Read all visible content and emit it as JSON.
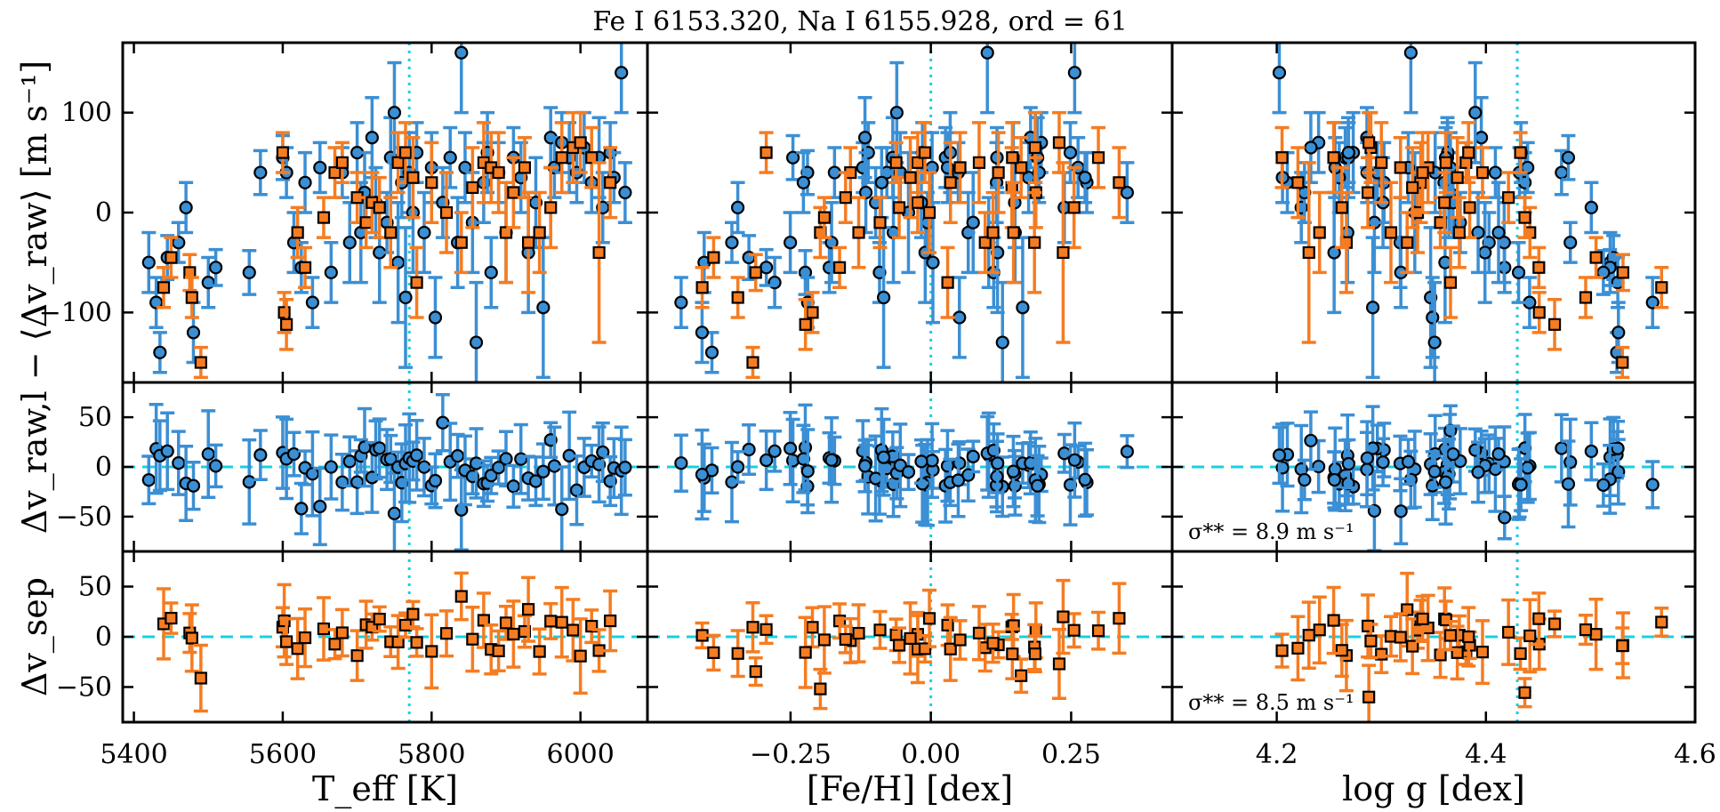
{
  "chart_data": {
    "type": "scatter",
    "title": "Fe I 6153.320, Na I 6155.928, ord = 61",
    "colors": {
      "blue": "#3b8fd4",
      "orange": "#f57c21",
      "cyan": "#17d0e3",
      "frame": "#000000"
    },
    "ylabels": {
      "top": "Δv_raw,l − ⟨Δv_raw⟩ [m s⁻¹]",
      "shared": "Δv_raw,l − ⟨Δv_raw⟩ [m s⁻¹]",
      "bottom": "Δv_sep"
    },
    "columns": [
      {
        "key": "teff",
        "xlabel": "T_eff [K]",
        "xlim": [
          5385,
          6090
        ],
        "ticks": [
          5400,
          5600,
          5800,
          6000
        ],
        "tick_labels": [
          "5400",
          "5600",
          "5800",
          "6000"
        ],
        "vline": 5770
      },
      {
        "key": "feh",
        "xlabel": "[Fe/H] [dex]",
        "xlim": [
          -0.505,
          0.43
        ],
        "ticks": [
          -0.25,
          0.0,
          0.25
        ],
        "tick_labels": [
          "−0.25",
          "0.00",
          "0.25"
        ],
        "vline": 0.0
      },
      {
        "key": "logg",
        "xlabel": "log g [dex]",
        "xlim": [
          4.1,
          4.6
        ],
        "ticks": [
          4.2,
          4.4,
          4.6
        ],
        "tick_labels": [
          "4.2",
          "4.4",
          "4.6"
        ],
        "vline": 4.43
      }
    ],
    "rows": [
      {
        "key": "raw",
        "ylim": [
          -170,
          170
        ],
        "ticks": [
          -100,
          0,
          100
        ],
        "tick_labels": [
          "−100",
          "0",
          "100"
        ],
        "hline": null
      },
      {
        "key": "resid",
        "ylim": [
          -85,
          85
        ],
        "ticks": [
          -50,
          0,
          50
        ],
        "tick_labels": [
          "−50",
          "0",
          "50"
        ],
        "hline": 0,
        "sigma": "σ** = 8.9 m s⁻¹"
      },
      {
        "key": "sep",
        "ylim": [
          -85,
          85
        ],
        "ticks": [
          -50,
          0,
          50
        ],
        "tick_labels": [
          "−50",
          "0",
          "50"
        ],
        "hline": 0,
        "sigma": "σ** = 8.5 m s⁻¹"
      }
    ],
    "series": [
      {
        "name": "Fe I 6153.320 (raw, circles)",
        "marker": "circle",
        "color": "blue",
        "row": "raw",
        "x_column": "teff",
        "points": [
          [
            5420,
            -50,
            30
          ],
          [
            5430,
            -90,
            25
          ],
          [
            5435,
            -140,
            20
          ],
          [
            5445,
            -45,
            22
          ],
          [
            5460,
            -30,
            20
          ],
          [
            5470,
            5,
            25
          ],
          [
            5480,
            -120,
            30
          ],
          [
            5500,
            -70,
            25
          ],
          [
            5510,
            -55,
            18
          ],
          [
            5555,
            -60,
            22
          ],
          [
            5570,
            40,
            22
          ],
          [
            5600,
            55,
            22
          ],
          [
            5605,
            40,
            25
          ],
          [
            5615,
            -30,
            30
          ],
          [
            5625,
            -55,
            25
          ],
          [
            5630,
            30,
            30
          ],
          [
            5640,
            -90,
            25
          ],
          [
            5650,
            45,
            25
          ],
          [
            5665,
            -60,
            30
          ],
          [
            5680,
            40,
            25
          ],
          [
            5690,
            -30,
            40
          ],
          [
            5700,
            60,
            30
          ],
          [
            5705,
            -20,
            50
          ],
          [
            5710,
            20,
            40
          ],
          [
            5720,
            75,
            40
          ],
          [
            5725,
            10,
            35
          ],
          [
            5730,
            -40,
            50
          ],
          [
            5740,
            -10,
            30
          ],
          [
            5745,
            55,
            40
          ],
          [
            5750,
            100,
            50
          ],
          [
            5755,
            -50,
            60
          ],
          [
            5760,
            30,
            35
          ],
          [
            5765,
            -85,
            70
          ],
          [
            5770,
            40,
            40
          ],
          [
            5775,
            0,
            60
          ],
          [
            5780,
            60,
            30
          ],
          [
            5790,
            -20,
            40
          ],
          [
            5800,
            45,
            35
          ],
          [
            5805,
            -105,
            40
          ],
          [
            5815,
            10,
            35
          ],
          [
            5825,
            55,
            30
          ],
          [
            5835,
            -30,
            45
          ],
          [
            5840,
            160,
            60
          ],
          [
            5845,
            45,
            35
          ],
          [
            5855,
            -10,
            50
          ],
          [
            5860,
            -130,
            60
          ],
          [
            5870,
            30,
            40
          ],
          [
            5875,
            60,
            40
          ],
          [
            5880,
            -60,
            35
          ],
          [
            5890,
            40,
            30
          ],
          [
            5900,
            -20,
            50
          ],
          [
            5910,
            55,
            30
          ],
          [
            5920,
            35,
            35
          ],
          [
            5930,
            -40,
            60
          ],
          [
            5940,
            10,
            45
          ],
          [
            5950,
            -95,
            70
          ],
          [
            5960,
            75,
            30
          ],
          [
            5965,
            45,
            30
          ],
          [
            5975,
            70,
            30
          ],
          [
            5985,
            55,
            35
          ],
          [
            5995,
            40,
            30
          ],
          [
            6005,
            65,
            35
          ],
          [
            6015,
            30,
            30
          ],
          [
            6025,
            55,
            40
          ],
          [
            6030,
            5,
            35
          ],
          [
            6040,
            60,
            30
          ],
          [
            6045,
            35,
            25
          ],
          [
            6055,
            140,
            40
          ],
          [
            6060,
            20,
            30
          ]
        ]
      },
      {
        "name": "Na I 6155.928 (raw, squares)",
        "marker": "square",
        "color": "orange",
        "row": "raw",
        "x_column": "teff",
        "points": [
          [
            5440,
            -75,
            20
          ],
          [
            5450,
            -45,
            20
          ],
          [
            5475,
            -60,
            18
          ],
          [
            5478,
            -85,
            20
          ],
          [
            5490,
            -150,
            15
          ],
          [
            5600,
            60,
            20
          ],
          [
            5602,
            -100,
            20
          ],
          [
            5605,
            -112,
            25
          ],
          [
            5620,
            -20,
            25
          ],
          [
            5630,
            -55,
            20
          ],
          [
            5655,
            -5,
            20
          ],
          [
            5670,
            40,
            25
          ],
          [
            5680,
            50,
            20
          ],
          [
            5700,
            15,
            25
          ],
          [
            5712,
            -10,
            25
          ],
          [
            5720,
            10,
            30
          ],
          [
            5730,
            5,
            30
          ],
          [
            5745,
            -20,
            35
          ],
          [
            5755,
            50,
            30
          ],
          [
            5765,
            60,
            30
          ],
          [
            5775,
            35,
            40
          ],
          [
            5780,
            -70,
            35
          ],
          [
            5800,
            30,
            40
          ],
          [
            5820,
            0,
            40
          ],
          [
            5840,
            -30,
            30
          ],
          [
            5855,
            25,
            40
          ],
          [
            5870,
            50,
            40
          ],
          [
            5880,
            45,
            35
          ],
          [
            5890,
            40,
            40
          ],
          [
            5900,
            -20,
            50
          ],
          [
            5910,
            20,
            35
          ],
          [
            5925,
            45,
            30
          ],
          [
            5930,
            -30,
            50
          ],
          [
            5945,
            -20,
            40
          ],
          [
            5960,
            5,
            40
          ],
          [
            5975,
            55,
            35
          ],
          [
            5990,
            65,
            35
          ],
          [
            6000,
            70,
            30
          ],
          [
            6015,
            55,
            30
          ],
          [
            6025,
            -40,
            90
          ],
          [
            6040,
            30,
            35
          ]
        ]
      }
    ]
  }
}
